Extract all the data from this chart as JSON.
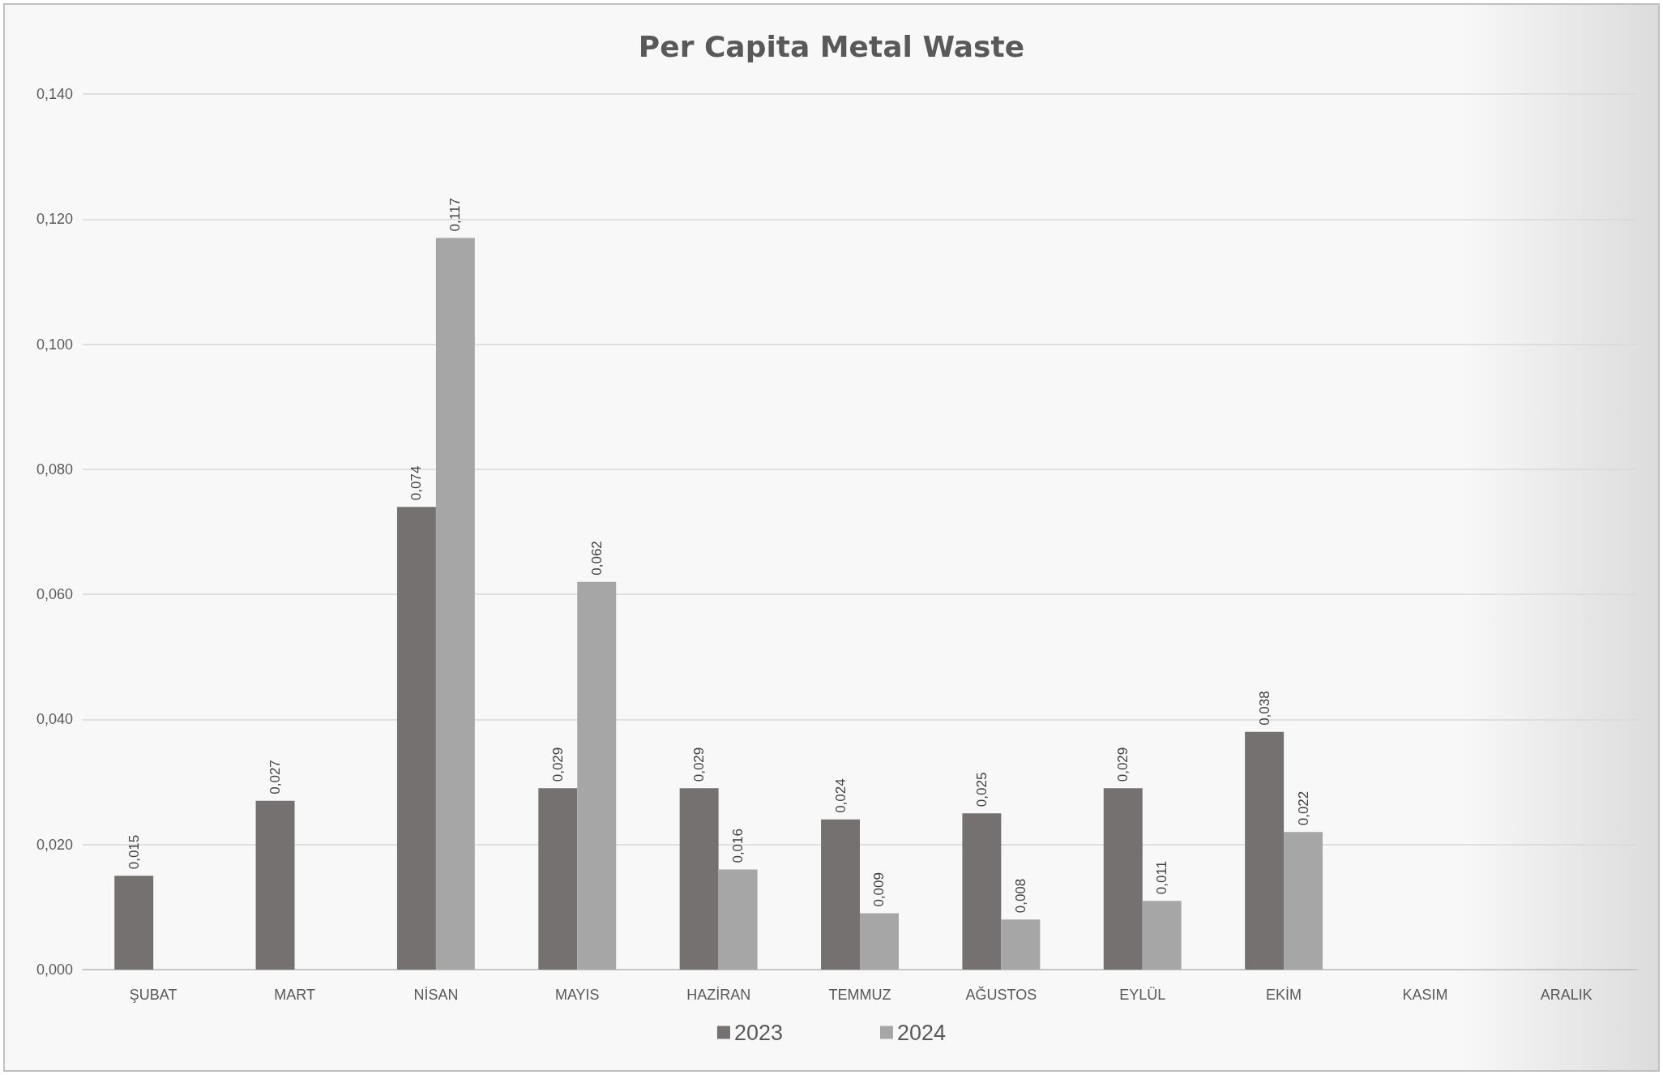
{
  "chart_data": {
    "type": "bar",
    "title": "Per Capita Metal Waste",
    "categories": [
      "ŞUBAT",
      "MART",
      "NİSAN",
      "MAYIS",
      "HAZİRAN",
      "TEMMUZ",
      "AĞUSTOS",
      "EYLÜL",
      "EKİM",
      "KASIM",
      "ARALIK"
    ],
    "series": [
      {
        "name": "2023",
        "color": "#767171",
        "values": [
          0.015,
          0.027,
          0.074,
          0.029,
          0.029,
          0.024,
          0.025,
          0.029,
          0.038,
          null,
          null
        ],
        "value_labels": [
          "0,015",
          "0,027",
          "0,074",
          "0,029",
          "0,029",
          "0,024",
          "0,025",
          "0,029",
          "0,038",
          null,
          null
        ]
      },
      {
        "name": "2024",
        "color": "#a6a6a6",
        "values": [
          null,
          null,
          0.117,
          0.062,
          0.016,
          0.009,
          0.008,
          0.011,
          0.022,
          null,
          null
        ],
        "value_labels": [
          null,
          null,
          "0,117",
          "0,062",
          "0,016",
          "0,009",
          "0,008",
          "0,011",
          "0,022",
          null,
          null
        ]
      }
    ],
    "ylim": [
      0,
      0.14
    ],
    "yticks": [
      {
        "value": 0,
        "label": "0,000"
      },
      {
        "value": 0.02,
        "label": "0,020"
      },
      {
        "value": 0.04,
        "label": "0,040"
      },
      {
        "value": 0.06,
        "label": "0,060"
      },
      {
        "value": 0.08,
        "label": "0,080"
      },
      {
        "value": 0.1,
        "label": "0,100"
      },
      {
        "value": 0.12,
        "label": "0,120"
      },
      {
        "value": 0.14,
        "label": "0,140"
      }
    ],
    "grid": "y",
    "legend": "bottom"
  }
}
